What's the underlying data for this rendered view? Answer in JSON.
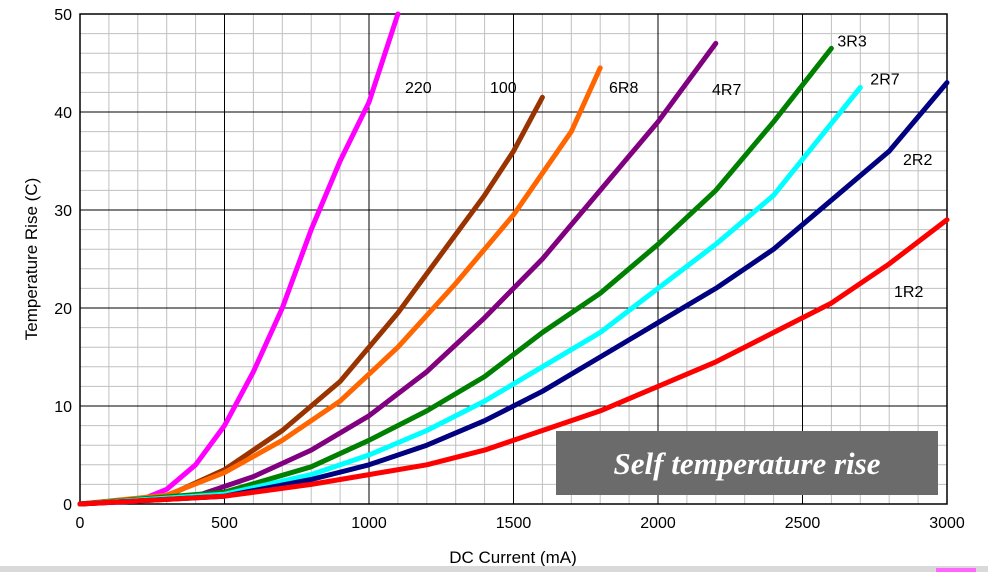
{
  "chart_data": {
    "type": "line",
    "xlabel": "DC Current (mA)",
    "ylabel": "Temperature Rise (C)",
    "xlim": [
      0,
      3000
    ],
    "ylim": [
      0,
      50
    ],
    "xticks": [
      "0",
      "500",
      "1000",
      "1500",
      "2000",
      "2500",
      "3000"
    ],
    "yticks": [
      "0",
      "10",
      "20",
      "30",
      "40",
      "50"
    ],
    "grid": true,
    "annotation": "Self temperature rise",
    "series": [
      {
        "name": "220",
        "color": "#ff00ff",
        "x": [
          0,
          200,
          300,
          400,
          500,
          600,
          700,
          800,
          900,
          1000,
          1100
        ],
        "y": [
          0,
          0.3,
          1.5,
          4,
          8,
          13.5,
          20,
          28,
          35,
          41,
          50
        ]
      },
      {
        "name": "100",
        "color": "#993300",
        "x": [
          0,
          300,
          500,
          700,
          900,
          1100,
          1300,
          1400,
          1500,
          1600
        ],
        "y": [
          0,
          0.8,
          3.5,
          7.5,
          12.5,
          19.5,
          27.5,
          31.5,
          36,
          41.5
        ]
      },
      {
        "name": "6R8",
        "color": "#ff6600",
        "x": [
          0,
          300,
          500,
          700,
          900,
          1100,
          1300,
          1500,
          1700,
          1800
        ],
        "y": [
          0,
          0.9,
          3.2,
          6.5,
          10.5,
          16,
          22.5,
          29.5,
          38,
          44.5
        ]
      },
      {
        "name": "4R7",
        "color": "#800080",
        "x": [
          0,
          400,
          600,
          800,
          1000,
          1200,
          1400,
          1600,
          1800,
          2000,
          2200
        ],
        "y": [
          0,
          0.8,
          2.8,
          5.5,
          9,
          13.5,
          19,
          25,
          32,
          39,
          47
        ]
      },
      {
        "name": "3R3",
        "color": "#008000",
        "x": [
          0,
          500,
          800,
          1000,
          1200,
          1400,
          1600,
          1800,
          2000,
          2200,
          2400,
          2600
        ],
        "y": [
          0,
          1.2,
          3.8,
          6.5,
          9.5,
          13,
          17.5,
          21.5,
          26.5,
          32,
          39,
          46.5
        ]
      },
      {
        "name": "2R7",
        "color": "#00ffff",
        "x": [
          0,
          500,
          800,
          1000,
          1200,
          1400,
          1600,
          1800,
          2000,
          2200,
          2400,
          2700
        ],
        "y": [
          0,
          1,
          3,
          5,
          7.5,
          10.5,
          14,
          17.5,
          22,
          26.5,
          31.5,
          42.5
        ]
      },
      {
        "name": "2R2",
        "color": "#000080",
        "x": [
          0,
          500,
          800,
          1000,
          1200,
          1400,
          1600,
          1800,
          2000,
          2200,
          2400,
          2600,
          2800,
          3000
        ],
        "y": [
          0,
          0.8,
          2.5,
          4,
          6,
          8.5,
          11.5,
          15,
          18.5,
          22,
          26,
          31,
          36,
          43
        ]
      },
      {
        "name": "1R2",
        "color": "#ff0000",
        "x": [
          0,
          500,
          800,
          1000,
          1200,
          1400,
          1600,
          1800,
          2000,
          2200,
          2400,
          2600,
          2800,
          3000
        ],
        "y": [
          0,
          0.8,
          2,
          3,
          4,
          5.5,
          7.5,
          9.5,
          12,
          14.5,
          17.5,
          20.5,
          24.5,
          29
        ]
      }
    ]
  }
}
